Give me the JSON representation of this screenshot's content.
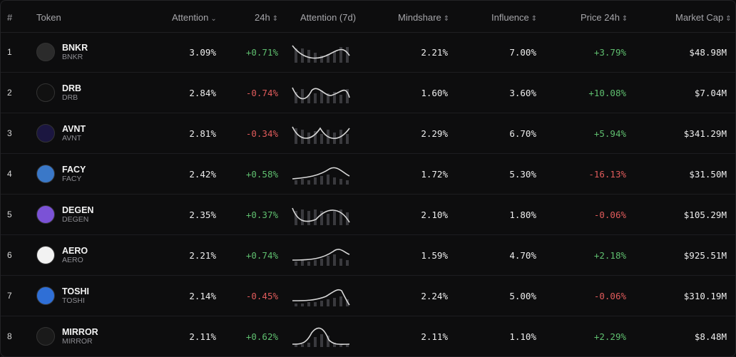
{
  "header": {
    "index": "#",
    "token": "Token",
    "attention": "Attention",
    "change_24h": "24h",
    "attention_7d": "Attention (7d)",
    "mindshare": "Mindshare",
    "influence": "Influence",
    "price_24h": "Price 24h",
    "market_cap": "Market Cap"
  },
  "rows": [
    {
      "index": "1",
      "name": "BNKR",
      "symbol": "BNKR",
      "attention": "3.09%",
      "change_24h": "+0.71%",
      "mindshare": "2.21%",
      "influence": "7.00%",
      "price_24h": "+3.79%",
      "market_cap": "$48.98M",
      "avatar_color": "#2b2b2b"
    },
    {
      "index": "2",
      "name": "DRB",
      "symbol": "DRB",
      "attention": "2.84%",
      "change_24h": "-0.74%",
      "mindshare": "1.60%",
      "influence": "3.60%",
      "price_24h": "+10.08%",
      "market_cap": "$7.04M",
      "avatar_color": "#111111"
    },
    {
      "index": "3",
      "name": "AVNT",
      "symbol": "AVNT",
      "attention": "2.81%",
      "change_24h": "-0.34%",
      "mindshare": "2.29%",
      "influence": "6.70%",
      "price_24h": "+5.94%",
      "market_cap": "$341.29M",
      "avatar_color": "#1b1640"
    },
    {
      "index": "4",
      "name": "FACY",
      "symbol": "FACY",
      "attention": "2.42%",
      "change_24h": "+0.58%",
      "mindshare": "1.72%",
      "influence": "5.30%",
      "price_24h": "-16.13%",
      "market_cap": "$31.50M",
      "avatar_color": "#3a78c8"
    },
    {
      "index": "5",
      "name": "DEGEN",
      "symbol": "DEGEN",
      "attention": "2.35%",
      "change_24h": "+0.37%",
      "mindshare": "2.10%",
      "influence": "1.80%",
      "price_24h": "-0.06%",
      "market_cap": "$105.29M",
      "avatar_color": "#7b52d6"
    },
    {
      "index": "6",
      "name": "AERO",
      "symbol": "AERO",
      "attention": "2.21%",
      "change_24h": "+0.74%",
      "mindshare": "1.59%",
      "influence": "4.70%",
      "price_24h": "+2.18%",
      "market_cap": "$925.51M",
      "avatar_color": "#f2f2f2"
    },
    {
      "index": "7",
      "name": "TOSHI",
      "symbol": "TOSHI",
      "attention": "2.14%",
      "change_24h": "-0.45%",
      "mindshare": "2.24%",
      "influence": "5.00%",
      "price_24h": "-0.06%",
      "market_cap": "$310.19M",
      "avatar_color": "#2f6fd6"
    },
    {
      "index": "8",
      "name": "MIRROR",
      "symbol": "MIRROR",
      "attention": "2.11%",
      "change_24h": "+0.62%",
      "mindshare": "2.11%",
      "influence": "1.10%",
      "price_24h": "+2.29%",
      "market_cap": "$8.48M",
      "avatar_color": "#1a1a1a"
    }
  ],
  "colors": {
    "positive": "#5fbf6f",
    "negative": "#e05b5b"
  }
}
